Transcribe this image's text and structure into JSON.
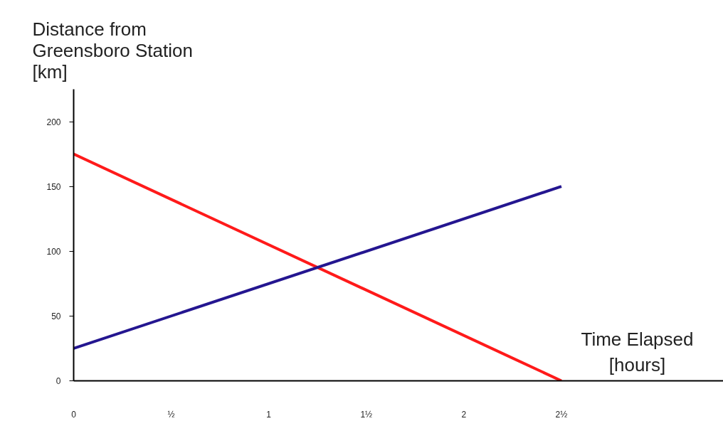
{
  "chart_data": {
    "type": "line",
    "xlabel": "Time Elapsed\n[hours]",
    "ylabel": "Distance from\nGreensboro Station\n[km]",
    "series": [
      {
        "color": "#ff1a1a",
        "values": [
          175,
          0
        ]
      },
      {
        "color": "#241690",
        "values": [
          25,
          150
        ]
      }
    ],
    "x": [
      0,
      2.5
    ],
    "xlim": [
      0,
      3.33
    ],
    "ylim": [
      0,
      225
    ],
    "xticks": [
      0,
      {
        "value": 0.5,
        "label": "½"
      },
      1,
      {
        "value": 1.5,
        "label": "1½"
      },
      2,
      {
        "value": 2.5,
        "label": "2½"
      }
    ],
    "yticks": [
      0,
      50,
      100,
      150,
      200
    ],
    "grid": false,
    "marker": "none",
    "line_style": "solid"
  }
}
